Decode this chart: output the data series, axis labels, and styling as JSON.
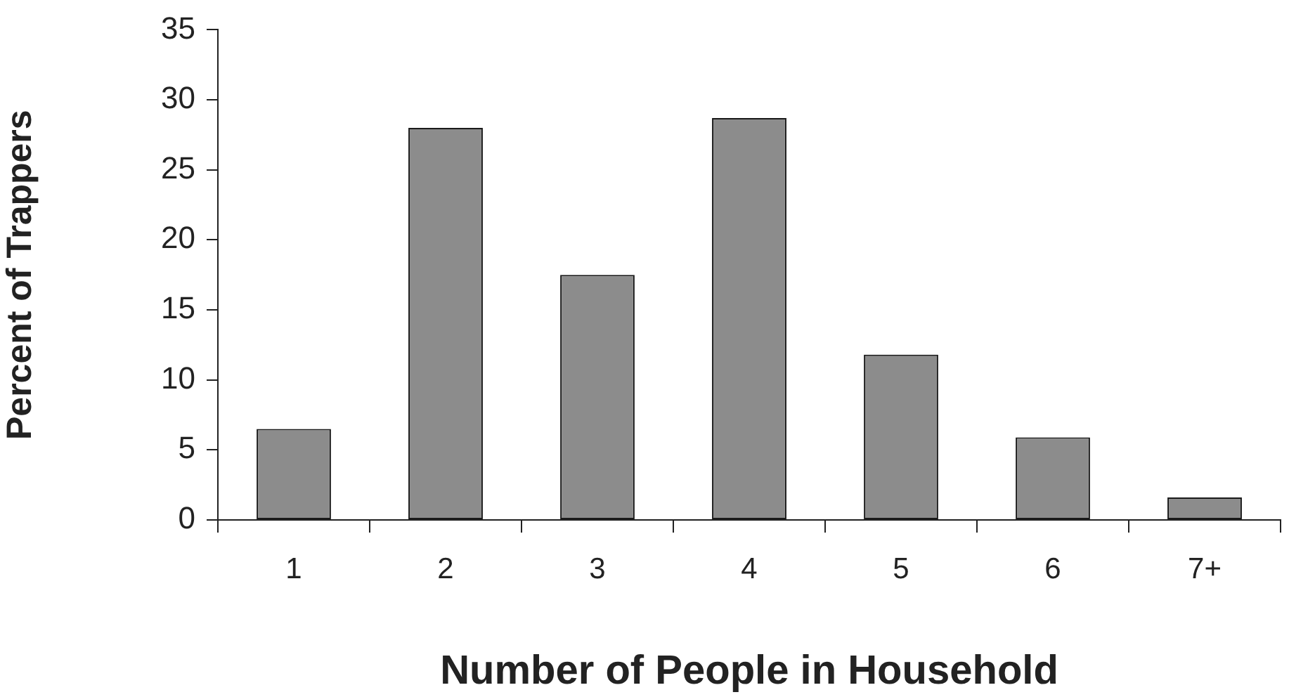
{
  "chart_data": {
    "type": "bar",
    "xlabel": "Number of People in Household",
    "ylabel": "Percent of Trappers",
    "categories": [
      "1",
      "2",
      "3",
      "4",
      "5",
      "6",
      "7+"
    ],
    "values": [
      6.5,
      28,
      17.5,
      28.7,
      11.8,
      5.9,
      1.6
    ],
    "color": "#8c8c8c",
    "ylim": [
      0,
      35
    ],
    "yticks": [
      0,
      5,
      10,
      15,
      20,
      25,
      30,
      35
    ],
    "grid": false,
    "legend": false
  }
}
